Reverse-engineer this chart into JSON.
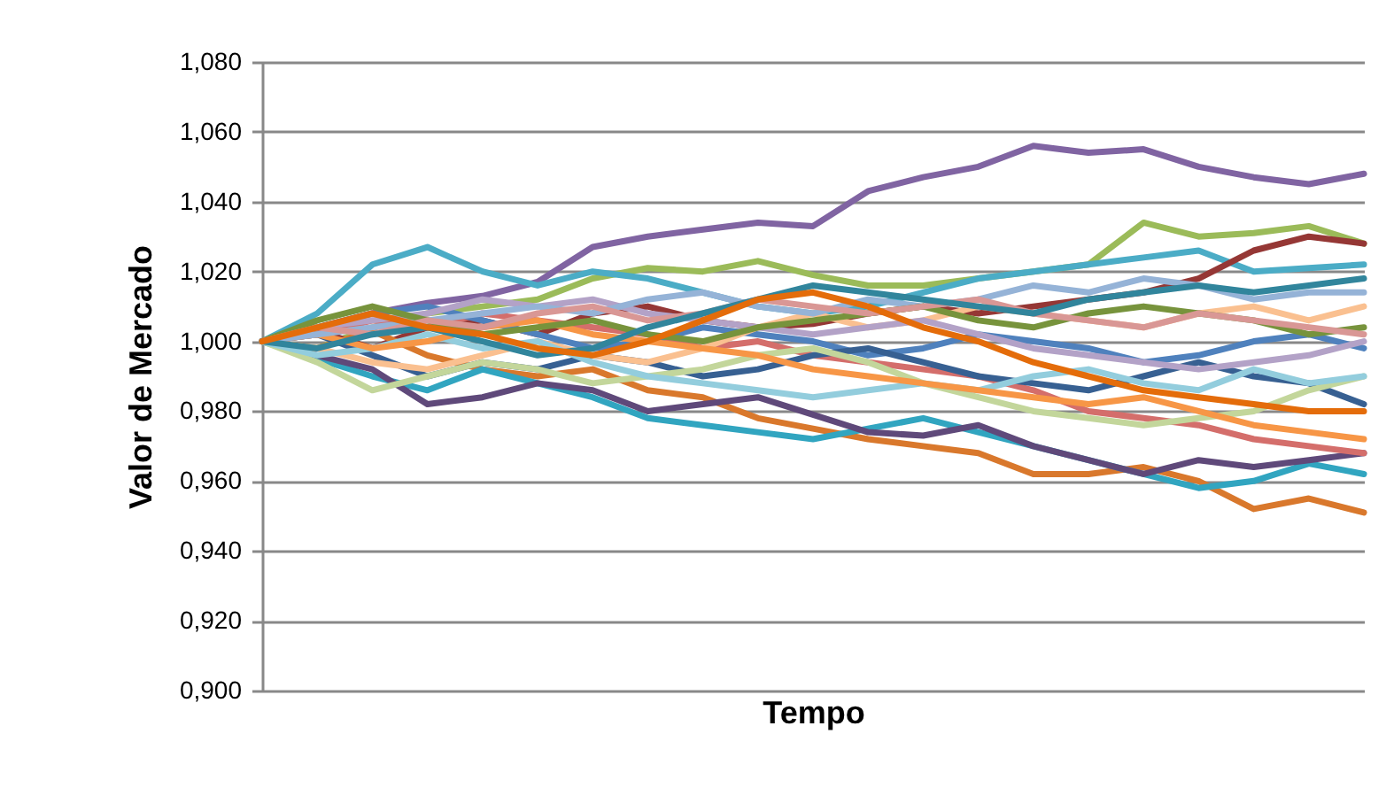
{
  "chart_data": {
    "type": "line",
    "xlabel": "Tempo",
    "ylabel": "Valor de Mercado",
    "ylim": [
      0.9,
      1.08
    ],
    "yticks": [
      {
        "value": 0.9,
        "label": "0,900"
      },
      {
        "value": 0.92,
        "label": "0,920"
      },
      {
        "value": 0.94,
        "label": "0,940"
      },
      {
        "value": 0.96,
        "label": "0,960"
      },
      {
        "value": 0.98,
        "label": "0,980"
      },
      {
        "value": 1.0,
        "label": "1,000"
      },
      {
        "value": 1.02,
        "label": "1,020"
      },
      {
        "value": 1.04,
        "label": "1,040"
      },
      {
        "value": 1.06,
        "label": "1,060"
      },
      {
        "value": 1.08,
        "label": "1,080"
      }
    ],
    "grid": "y",
    "legend": false,
    "tick_labels": "y",
    "marker": "none",
    "line_style": "solid",
    "categories": [
      null,
      null,
      null,
      null,
      null,
      null,
      null,
      null,
      null,
      null,
      null,
      null,
      null,
      null,
      null,
      null,
      null,
      null,
      null,
      null,
      null
    ],
    "series": [
      {
        "color": "#8064a2",
        "values": [
          1.0,
          1.004,
          1.008,
          1.011,
          1.013,
          1.017,
          1.027,
          1.03,
          1.032,
          1.034,
          1.033,
          1.043,
          1.047,
          1.05,
          1.056,
          1.054,
          1.055,
          1.05,
          1.047,
          1.045,
          1.048
        ]
      },
      {
        "color": "#9bbb59",
        "values": [
          1.0,
          0.998,
          1.004,
          1.008,
          1.01,
          1.012,
          1.018,
          1.021,
          1.02,
          1.023,
          1.019,
          1.016,
          1.016,
          1.018,
          1.02,
          1.022,
          1.034,
          1.03,
          1.031,
          1.033,
          1.028
        ]
      },
      {
        "color": "#4bacc6",
        "values": [
          1.0,
          1.008,
          1.022,
          1.027,
          1.02,
          1.016,
          1.02,
          1.018,
          1.014,
          1.01,
          1.008,
          1.01,
          1.014,
          1.018,
          1.02,
          1.022,
          1.024,
          1.026,
          1.02,
          1.021,
          1.022
        ]
      },
      {
        "color": "#953735",
        "values": [
          1.0,
          1.003,
          0.998,
          1.004,
          1.006,
          1.002,
          1.008,
          1.01,
          1.006,
          1.004,
          1.005,
          1.008,
          1.01,
          1.008,
          1.01,
          1.012,
          1.014,
          1.018,
          1.026,
          1.03,
          1.028
        ]
      },
      {
        "color": "#d9782c",
        "values": [
          1.0,
          0.998,
          1.003,
          0.996,
          0.992,
          0.99,
          0.992,
          0.986,
          0.984,
          0.978,
          0.975,
          0.972,
          0.97,
          0.968,
          0.962,
          0.962,
          0.964,
          0.96,
          0.952,
          0.955,
          0.951
        ]
      },
      {
        "color": "#31a5c0",
        "values": [
          1.0,
          0.995,
          0.99,
          0.986,
          0.992,
          0.988,
          0.984,
          0.978,
          0.976,
          0.974,
          0.972,
          0.975,
          0.978,
          0.974,
          0.97,
          0.966,
          0.962,
          0.958,
          0.96,
          0.965,
          0.962
        ]
      },
      {
        "color": "#5f497a",
        "values": [
          1.0,
          0.996,
          0.992,
          0.982,
          0.984,
          0.988,
          0.986,
          0.98,
          0.982,
          0.984,
          0.979,
          0.974,
          0.973,
          0.976,
          0.97,
          0.966,
          0.962,
          0.966,
          0.964,
          0.966,
          0.968
        ]
      },
      {
        "color": "#d46e6b",
        "values": [
          1.0,
          1.002,
          1.006,
          1.004,
          1.008,
          1.006,
          1.004,
          1.002,
          0.998,
          1.0,
          0.996,
          0.994,
          0.992,
          0.99,
          0.986,
          0.98,
          0.978,
          0.976,
          0.972,
          0.97,
          0.968
        ]
      },
      {
        "color": "#4f81bd",
        "values": [
          1.0,
          1.004,
          1.008,
          1.01,
          1.006,
          1.002,
          0.998,
          1.0,
          1.004,
          1.002,
          1.0,
          0.996,
          0.998,
          1.002,
          1.0,
          0.998,
          0.994,
          0.996,
          1.0,
          1.002,
          0.998
        ]
      },
      {
        "color": "#376092",
        "values": [
          1.0,
          1.002,
          0.996,
          0.99,
          0.994,
          0.992,
          0.996,
          0.994,
          0.99,
          0.992,
          0.996,
          0.998,
          0.994,
          0.99,
          0.988,
          0.986,
          0.99,
          0.994,
          0.99,
          0.988,
          0.982
        ]
      },
      {
        "color": "#c3d69b",
        "values": [
          1.0,
          0.994,
          0.986,
          0.99,
          0.994,
          0.992,
          0.988,
          0.99,
          0.992,
          0.996,
          0.998,
          0.994,
          0.988,
          0.984,
          0.98,
          0.978,
          0.976,
          0.978,
          0.98,
          0.986,
          0.99
        ]
      },
      {
        "color": "#fac090",
        "values": [
          1.0,
          0.998,
          0.994,
          0.992,
          0.996,
          1.0,
          0.996,
          0.994,
          0.998,
          1.004,
          1.008,
          1.004,
          1.006,
          1.01,
          1.008,
          1.006,
          1.004,
          1.008,
          1.01,
          1.006,
          1.01
        ]
      },
      {
        "color": "#93cddd",
        "values": [
          1.0,
          0.996,
          0.998,
          1.002,
          0.998,
          1.0,
          0.994,
          0.99,
          0.988,
          0.986,
          0.984,
          0.986,
          0.988,
          0.986,
          0.99,
          0.992,
          0.988,
          0.986,
          0.992,
          0.988,
          0.99
        ]
      },
      {
        "color": "#f79646",
        "values": [
          1.0,
          1.002,
          0.998,
          1.0,
          1.004,
          1.006,
          1.002,
          1.0,
          0.998,
          0.996,
          0.992,
          0.99,
          0.988,
          0.986,
          0.984,
          0.982,
          0.984,
          0.98,
          0.976,
          0.974,
          0.972
        ]
      },
      {
        "color": "#b3a2c7",
        "values": [
          1.0,
          1.004,
          1.006,
          1.008,
          1.012,
          1.01,
          1.012,
          1.008,
          1.006,
          1.004,
          1.002,
          1.004,
          1.006,
          1.002,
          0.998,
          0.996,
          0.994,
          0.992,
          0.994,
          0.996,
          1.0
        ]
      },
      {
        "color": "#95b3d7",
        "values": [
          1.0,
          1.002,
          1.004,
          1.006,
          1.008,
          1.01,
          1.008,
          1.012,
          1.014,
          1.01,
          1.008,
          1.012,
          1.01,
          1.012,
          1.016,
          1.014,
          1.018,
          1.016,
          1.012,
          1.014,
          1.014
        ]
      },
      {
        "color": "#77933c",
        "values": [
          1.0,
          1.006,
          1.01,
          1.006,
          1.002,
          1.004,
          1.006,
          1.002,
          1.0,
          1.004,
          1.006,
          1.008,
          1.01,
          1.006,
          1.004,
          1.008,
          1.01,
          1.008,
          1.006,
          1.002,
          1.004
        ]
      },
      {
        "color": "#d99795",
        "values": [
          1.0,
          1.004,
          1.002,
          1.006,
          1.004,
          1.008,
          1.01,
          1.006,
          1.008,
          1.012,
          1.01,
          1.008,
          1.01,
          1.012,
          1.008,
          1.006,
          1.004,
          1.008,
          1.006,
          1.004,
          1.002
        ]
      },
      {
        "color": "#31859c",
        "values": [
          1.0,
          0.998,
          1.002,
          1.004,
          1.0,
          0.996,
          0.998,
          1.004,
          1.008,
          1.012,
          1.016,
          1.014,
          1.012,
          1.01,
          1.008,
          1.012,
          1.014,
          1.016,
          1.014,
          1.016,
          1.018
        ]
      },
      {
        "color": "#e46c0a",
        "values": [
          1.0,
          1.004,
          1.008,
          1.004,
          1.002,
          0.998,
          0.996,
          1.0,
          1.006,
          1.012,
          1.014,
          1.01,
          1.004,
          1.0,
          0.994,
          0.99,
          0.986,
          0.984,
          0.982,
          0.98,
          0.98
        ]
      }
    ]
  }
}
